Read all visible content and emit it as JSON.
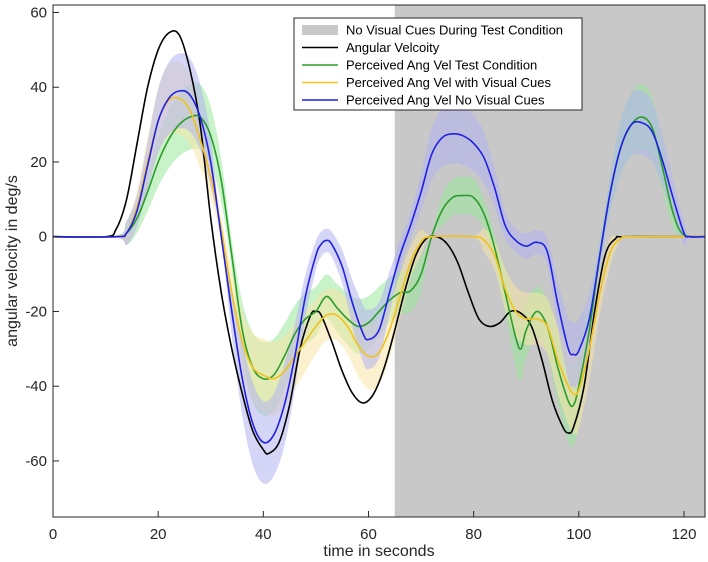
{
  "chart_data": {
    "type": "line",
    "title": "",
    "xlabel": "time in seconds",
    "ylabel": "angular velocity in deg/s",
    "xlim": [
      0,
      124
    ],
    "ylim": [
      -75,
      62
    ],
    "xticks": [
      0,
      20,
      40,
      60,
      80,
      100,
      120
    ],
    "yticks": [
      -60,
      -40,
      -20,
      0,
      20,
      40,
      60
    ],
    "grid": false,
    "legend_position": "top-right",
    "shaded_region": {
      "name": "No Visual Cues During Test Condition",
      "x_start": 65,
      "x_end": 124,
      "color": "#c8c8c8"
    },
    "series": [
      {
        "name": "Angular Velcoity",
        "color": "#000000",
        "band": null,
        "points": [
          [
            0,
            0
          ],
          [
            10,
            0
          ],
          [
            12,
            2
          ],
          [
            14,
            10
          ],
          [
            16,
            25
          ],
          [
            18,
            40
          ],
          [
            20,
            50
          ],
          [
            22,
            54.5
          ],
          [
            24,
            54
          ],
          [
            26,
            45
          ],
          [
            28,
            30
          ],
          [
            30,
            5
          ],
          [
            32,
            -15
          ],
          [
            34,
            -30
          ],
          [
            36,
            -42
          ],
          [
            38,
            -52
          ],
          [
            40,
            -57
          ],
          [
            41,
            -58
          ],
          [
            43,
            -55
          ],
          [
            45,
            -45
          ],
          [
            47,
            -30
          ],
          [
            49,
            -21
          ],
          [
            50,
            -20
          ],
          [
            51,
            -21
          ],
          [
            53,
            -28
          ],
          [
            55,
            -36
          ],
          [
            57,
            -42
          ],
          [
            59,
            -44.5
          ],
          [
            61,
            -42
          ],
          [
            63,
            -35
          ],
          [
            65,
            -25
          ],
          [
            67,
            -14
          ],
          [
            69,
            -5
          ],
          [
            71,
            -0.5
          ],
          [
            73,
            0
          ],
          [
            75,
            -2
          ],
          [
            77,
            -7
          ],
          [
            79,
            -15
          ],
          [
            81,
            -22
          ],
          [
            83,
            -24
          ],
          [
            85,
            -23
          ],
          [
            87,
            -20
          ],
          [
            89,
            -20.5
          ],
          [
            91,
            -24
          ],
          [
            93,
            -33
          ],
          [
            95,
            -44
          ],
          [
            97,
            -51
          ],
          [
            98,
            -52.5
          ],
          [
            99,
            -51
          ],
          [
            101,
            -40
          ],
          [
            103,
            -20
          ],
          [
            105,
            -5
          ],
          [
            107,
            -0.5
          ],
          [
            109,
            0
          ],
          [
            124,
            0
          ]
        ]
      },
      {
        "name": "Perceived Ang Vel Test Condition",
        "color": "#2a9d2a",
        "band": "#9be89b",
        "points": [
          [
            0,
            0
          ],
          [
            12,
            0
          ],
          [
            14,
            1
          ],
          [
            16,
            5
          ],
          [
            18,
            12
          ],
          [
            20,
            20
          ],
          [
            22,
            26
          ],
          [
            24,
            30
          ],
          [
            26,
            32
          ],
          [
            28,
            32
          ],
          [
            30,
            27
          ],
          [
            32,
            15
          ],
          [
            34,
            -5
          ],
          [
            36,
            -25
          ],
          [
            38,
            -35
          ],
          [
            40,
            -38
          ],
          [
            42,
            -37
          ],
          [
            44,
            -32
          ],
          [
            46,
            -26
          ],
          [
            48,
            -22
          ],
          [
            50,
            -20
          ],
          [
            52,
            -16
          ],
          [
            54,
            -19
          ],
          [
            56,
            -22
          ],
          [
            58,
            -24
          ],
          [
            60,
            -23
          ],
          [
            62,
            -20
          ],
          [
            64,
            -17
          ],
          [
            66,
            -15
          ],
          [
            68,
            -14.5
          ],
          [
            70,
            -10
          ],
          [
            72,
            0
          ],
          [
            74,
            7
          ],
          [
            76,
            10.5
          ],
          [
            78,
            11
          ],
          [
            80,
            10.5
          ],
          [
            82,
            6
          ],
          [
            84,
            -3
          ],
          [
            86,
            -15
          ],
          [
            88,
            -27
          ],
          [
            89,
            -30
          ],
          [
            90,
            -25
          ],
          [
            92,
            -20
          ],
          [
            94,
            -24
          ],
          [
            96,
            -35
          ],
          [
            98,
            -44
          ],
          [
            99,
            -45
          ],
          [
            100,
            -40
          ],
          [
            102,
            -25
          ],
          [
            104,
            -5
          ],
          [
            106,
            12
          ],
          [
            108,
            24
          ],
          [
            110,
            30
          ],
          [
            112,
            32
          ],
          [
            114,
            29
          ],
          [
            116,
            18
          ],
          [
            118,
            6
          ],
          [
            120,
            0.5
          ],
          [
            124,
            0
          ]
        ]
      },
      {
        "name": "Perceived Ang Vel with Visual Cues",
        "color": "#f2c21a",
        "band": "#f8e6a6",
        "points": [
          [
            0,
            0
          ],
          [
            12,
            0
          ],
          [
            14,
            1
          ],
          [
            16,
            8
          ],
          [
            18,
            20
          ],
          [
            20,
            31
          ],
          [
            22,
            36.5
          ],
          [
            24,
            37
          ],
          [
            26,
            34
          ],
          [
            28,
            26
          ],
          [
            30,
            16
          ],
          [
            32,
            2
          ],
          [
            34,
            -15
          ],
          [
            36,
            -28
          ],
          [
            38,
            -35
          ],
          [
            40,
            -37
          ],
          [
            42,
            -38
          ],
          [
            44,
            -36
          ],
          [
            46,
            -32
          ],
          [
            48,
            -28
          ],
          [
            50,
            -24
          ],
          [
            52,
            -21
          ],
          [
            54,
            -21
          ],
          [
            56,
            -24
          ],
          [
            58,
            -29
          ],
          [
            60,
            -32
          ],
          [
            62,
            -31
          ],
          [
            64,
            -25
          ],
          [
            66,
            -16
          ],
          [
            68,
            -7
          ],
          [
            70,
            -1.5
          ],
          [
            72,
            0
          ],
          [
            80,
            0
          ],
          [
            82,
            -1
          ],
          [
            84,
            -5
          ],
          [
            86,
            -14
          ],
          [
            88,
            -20
          ],
          [
            90,
            -22
          ],
          [
            92,
            -22
          ],
          [
            94,
            -24
          ],
          [
            96,
            -33
          ],
          [
            98,
            -40
          ],
          [
            99,
            -42
          ],
          [
            100,
            -41
          ],
          [
            102,
            -30
          ],
          [
            104,
            -15
          ],
          [
            106,
            -4
          ],
          [
            108,
            -0.5
          ],
          [
            110,
            0
          ],
          [
            124,
            0
          ]
        ]
      },
      {
        "name": "Perceived Ang Vel No Visual Cues",
        "color": "#1f1fe6",
        "band": "#b3b3f0",
        "points": [
          [
            0,
            0
          ],
          [
            12,
            0
          ],
          [
            14,
            1
          ],
          [
            16,
            7
          ],
          [
            18,
            19
          ],
          [
            20,
            31
          ],
          [
            22,
            37
          ],
          [
            24,
            39
          ],
          [
            26,
            38
          ],
          [
            28,
            32
          ],
          [
            30,
            20
          ],
          [
            32,
            0
          ],
          [
            34,
            -20
          ],
          [
            36,
            -38
          ],
          [
            38,
            -50
          ],
          [
            40,
            -55
          ],
          [
            42,
            -53
          ],
          [
            44,
            -45
          ],
          [
            46,
            -32
          ],
          [
            48,
            -16
          ],
          [
            50,
            -5
          ],
          [
            51,
            -2
          ],
          [
            52,
            -1
          ],
          [
            53,
            -2
          ],
          [
            55,
            -8
          ],
          [
            57,
            -18
          ],
          [
            59,
            -26
          ],
          [
            60,
            -27.5
          ],
          [
            62,
            -25
          ],
          [
            64,
            -15
          ],
          [
            66,
            -5
          ],
          [
            68,
            3
          ],
          [
            70,
            12
          ],
          [
            72,
            22
          ],
          [
            74,
            26.5
          ],
          [
            76,
            27.5
          ],
          [
            78,
            27
          ],
          [
            80,
            25
          ],
          [
            82,
            21
          ],
          [
            84,
            13
          ],
          [
            86,
            3
          ],
          [
            88,
            -1
          ],
          [
            90,
            -2.5
          ],
          [
            92,
            -1.5
          ],
          [
            94,
            -4
          ],
          [
            96,
            -18
          ],
          [
            98,
            -30
          ],
          [
            99,
            -31.5
          ],
          [
            100,
            -30.5
          ],
          [
            102,
            -22
          ],
          [
            104,
            -5
          ],
          [
            106,
            12
          ],
          [
            108,
            24
          ],
          [
            110,
            30
          ],
          [
            112,
            30.5
          ],
          [
            114,
            28
          ],
          [
            116,
            20
          ],
          [
            118,
            10
          ],
          [
            120,
            1
          ],
          [
            121,
            0
          ],
          [
            124,
            0
          ]
        ]
      }
    ]
  }
}
